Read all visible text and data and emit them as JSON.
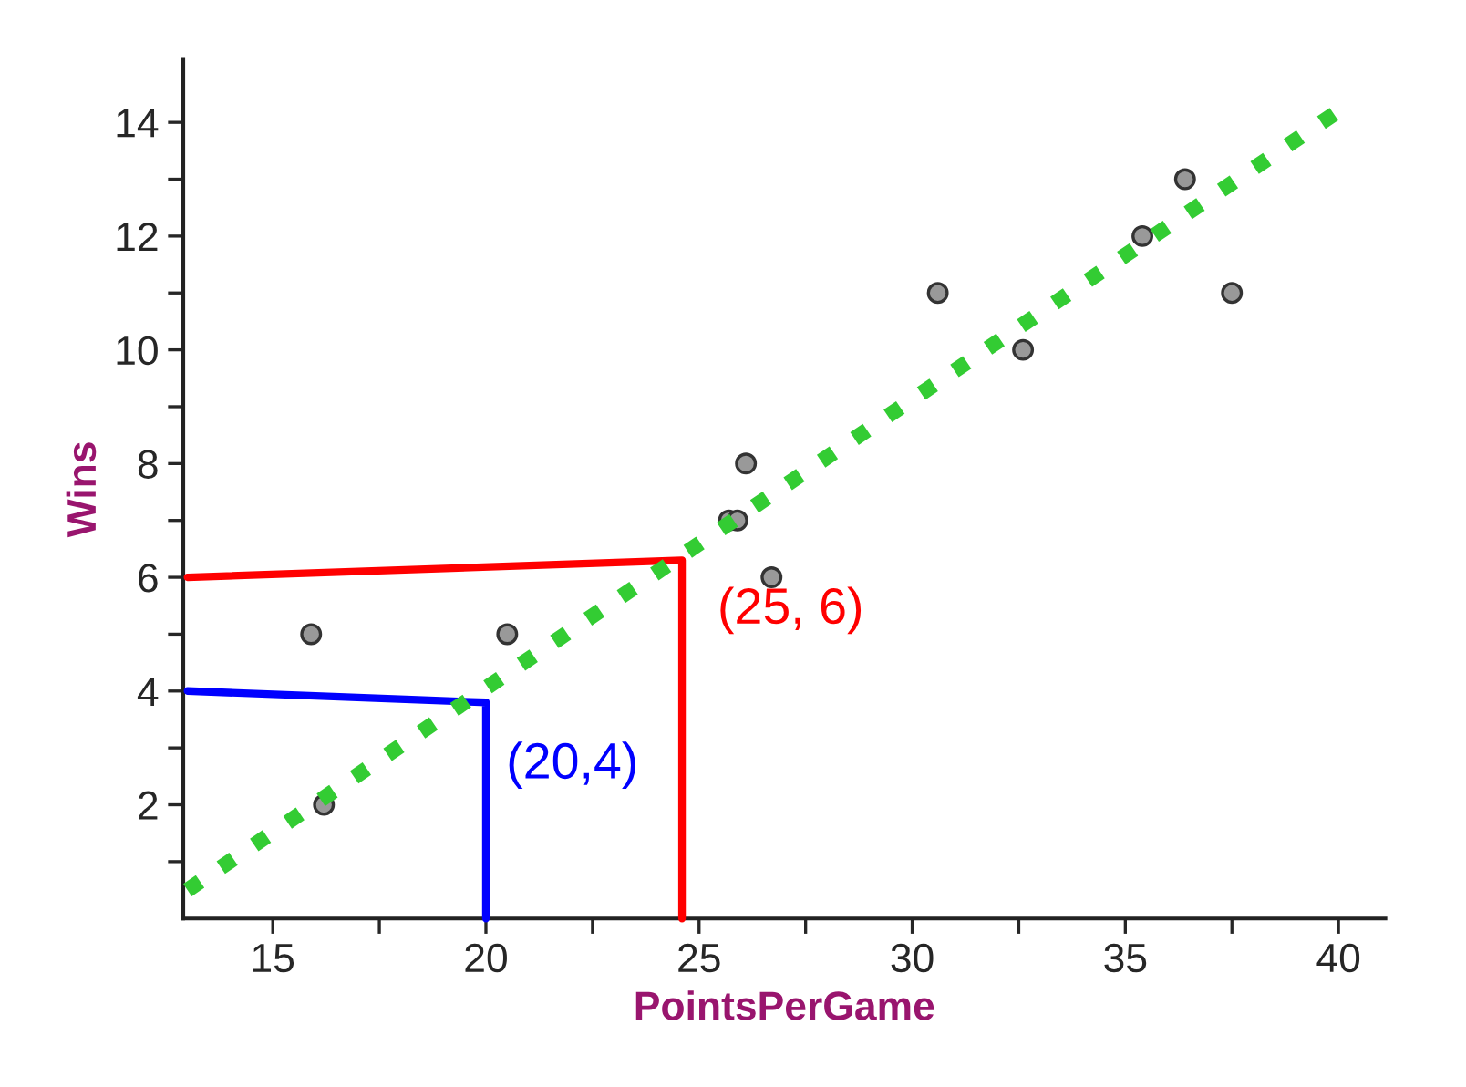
{
  "chart_data": {
    "type": "scatter",
    "xlabel": "PointsPerGame",
    "ylabel": "Wins",
    "xlim": [
      12.9,
      41.1
    ],
    "ylim": [
      0,
      15.1
    ],
    "xticks": [
      15,
      {
        "value": 17.5,
        "label": null
      },
      20,
      {
        "value": 22.5,
        "label": null
      },
      25,
      {
        "value": 27.5,
        "label": null
      },
      30,
      {
        "value": 32.5,
        "label": null
      },
      35,
      {
        "value": 37.5,
        "label": null
      },
      40
    ],
    "yticks": [
      {
        "value": 1,
        "label": null
      },
      2,
      {
        "value": 3,
        "label": null
      },
      4,
      {
        "value": 5,
        "label": null
      },
      6,
      {
        "value": 7,
        "label": null
      },
      8,
      {
        "value": 9,
        "label": null
      },
      10,
      {
        "value": 11,
        "label": null
      },
      12,
      {
        "value": 13,
        "label": null
      },
      14
    ],
    "grid": false,
    "legend": false,
    "series": [
      {
        "color": "#999999",
        "marker": "circle",
        "x": [
          15.9,
          16.2,
          20.5,
          25.7,
          25.9,
          26.1,
          26.7,
          30.6,
          32.6,
          35.4,
          36.4,
          37.5
        ],
        "values": [
          5,
          2,
          5,
          7,
          7,
          8,
          6,
          11,
          10,
          12,
          13,
          11
        ]
      },
      {
        "type": "line",
        "color": "#ff0000",
        "line_style": "solid",
        "x": [
          13,
          24.6,
          24.6
        ],
        "values": [
          6,
          6.3,
          0
        ]
      },
      {
        "type": "line",
        "color": "#0000ff",
        "line_style": "solid",
        "x": [
          13,
          20,
          20
        ],
        "values": [
          4,
          3.8,
          0
        ]
      },
      {
        "type": "line",
        "color": "#33cc33",
        "line_style": "dotted",
        "x": [
          13,
          40
        ],
        "values": [
          0.5,
          14.2
        ]
      }
    ],
    "annotations": [
      {
        "text": "(25, 6)",
        "x": 24.6,
        "y": 6.3
      },
      {
        "text": "(20,4)",
        "x": 20,
        "y": 3.8
      }
    ]
  }
}
